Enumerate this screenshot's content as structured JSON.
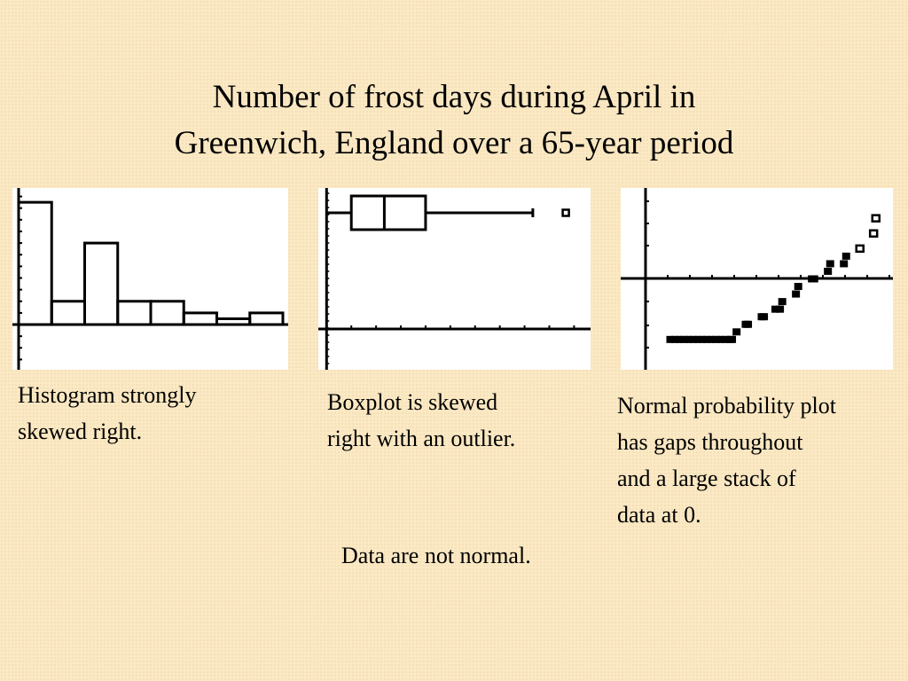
{
  "title": {
    "line1": "Number of frost days during April in",
    "line2": "Greenwich, England over a 65-year period"
  },
  "colors": {
    "background": "#fbe9c4",
    "panel": "#ffffff",
    "ink": "#000000"
  },
  "captions": {
    "histogram": [
      "Histogram strongly",
      "skewed right."
    ],
    "boxplot": [
      "Boxplot is skewed",
      "right with an outlier."
    ],
    "normal_plot": [
      "Normal probability plot",
      "has gaps throughout",
      "and a large stack of",
      "data at 0."
    ],
    "conclusion": "Data are not normal."
  },
  "chart_data": [
    {
      "type": "bar",
      "subtype": "histogram",
      "bin_width": 3,
      "bin_starts": [
        0,
        3,
        6,
        9,
        12,
        15,
        18,
        21
      ],
      "values": [
        21,
        4,
        14,
        4,
        4,
        2,
        1,
        2
      ],
      "xlim": [
        0,
        24
      ],
      "ylim": [
        -7,
        23
      ],
      "grid": false
    },
    {
      "type": "boxplot",
      "min": 0,
      "q1": 3,
      "median": 7,
      "q3": 12,
      "max": 25,
      "outliers": [
        29
      ],
      "xlim": [
        -1,
        32
      ],
      "grid": false
    },
    {
      "type": "scatter",
      "subtype": "normal probability plot",
      "z": [
        -2.4,
        -2.3,
        -2.2,
        -2.1,
        -2.0,
        -1.9,
        -1.8,
        -1.7,
        -1.6,
        -1.5,
        -1.4,
        -1.3,
        -1.2,
        -1.1,
        -1.05,
        -0.95,
        -0.75,
        -0.7,
        -0.4,
        -0.35,
        -0.1,
        0.0,
        0.05,
        0.35,
        0.4,
        0.7,
        0.75,
        1.05,
        1.1,
        1.4,
        1.45,
        1.75,
        2.05,
        2.1
      ],
      "values": [
        0,
        0,
        0,
        0,
        0,
        0,
        0,
        0,
        0,
        0,
        0,
        0,
        0,
        0,
        0,
        1,
        2,
        2,
        3,
        3,
        4,
        4,
        5,
        6,
        7,
        8,
        8,
        9,
        10,
        10,
        11,
        12,
        14,
        16
      ],
      "xlim": [
        -2.5,
        2.5
      ],
      "ylim": [
        -4,
        20
      ],
      "grid": false
    }
  ]
}
